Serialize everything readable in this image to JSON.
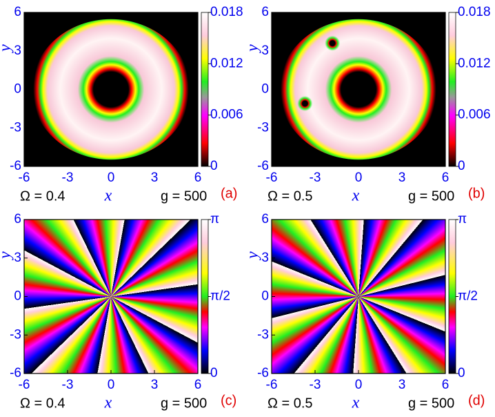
{
  "chart_data": [
    {
      "type": "heatmap",
      "xlabel": "x",
      "ylabel": "y",
      "xlim": [
        -6,
        6
      ],
      "ylim": [
        -6,
        6
      ],
      "xticks": [
        -6,
        -3,
        0,
        3,
        6
      ],
      "yticks": [
        -6,
        -3,
        0,
        3,
        6
      ],
      "colorbar_lim": [
        0,
        0.018
      ],
      "colorbar_ticks": [
        0,
        0.006,
        0.012,
        0.018
      ],
      "annotations": [
        "Ω = 0.4",
        "g = 500"
      ],
      "panel_label": "(a)"
    },
    {
      "type": "heatmap",
      "xlabel": "x",
      "ylabel": "y",
      "xlim": [
        -6,
        6
      ],
      "ylim": [
        -6,
        6
      ],
      "xticks": [
        -6,
        -3,
        0,
        3,
        6
      ],
      "yticks": [
        -6,
        -3,
        0,
        3,
        6
      ],
      "colorbar_lim": [
        0,
        0.018
      ],
      "colorbar_ticks": [
        0,
        0.006,
        0.012,
        0.018
      ],
      "annotations": [
        "Ω = 0.5",
        "g = 500"
      ],
      "panel_label": "(b)"
    },
    {
      "type": "heatmap",
      "xlabel": "x",
      "ylabel": "y",
      "xlim": [
        -6,
        6
      ],
      "ylim": [
        -6,
        6
      ],
      "xticks": [
        -6,
        -3,
        0,
        3,
        6
      ],
      "yticks": [
        -6,
        -3,
        0,
        3,
        6
      ],
      "colorbar_lim": [
        0,
        3.1416
      ],
      "colorbar_ticks": [
        0,
        {
          "value": 1.5708,
          "label": "π/2"
        },
        {
          "value": 3.1416,
          "label": "π"
        }
      ],
      "annotations": [
        "Ω = 0.4",
        "g = 500"
      ],
      "panel_label": "(c)"
    },
    {
      "type": "heatmap",
      "xlabel": "x",
      "ylabel": "y",
      "xlim": [
        -6,
        6
      ],
      "ylim": [
        -6,
        6
      ],
      "xticks": [
        -6,
        -3,
        0,
        3,
        6
      ],
      "yticks": [
        -6,
        -3,
        0,
        3,
        6
      ],
      "colorbar_lim": [
        0,
        3.1416
      ],
      "colorbar_ticks": [
        0,
        {
          "value": 1.5708,
          "label": "π/2"
        },
        {
          "value": 3.1416,
          "label": "π"
        }
      ],
      "annotations": [
        "Ω = 0.5",
        "g = 500"
      ],
      "panel_label": "(d)"
    }
  ]
}
